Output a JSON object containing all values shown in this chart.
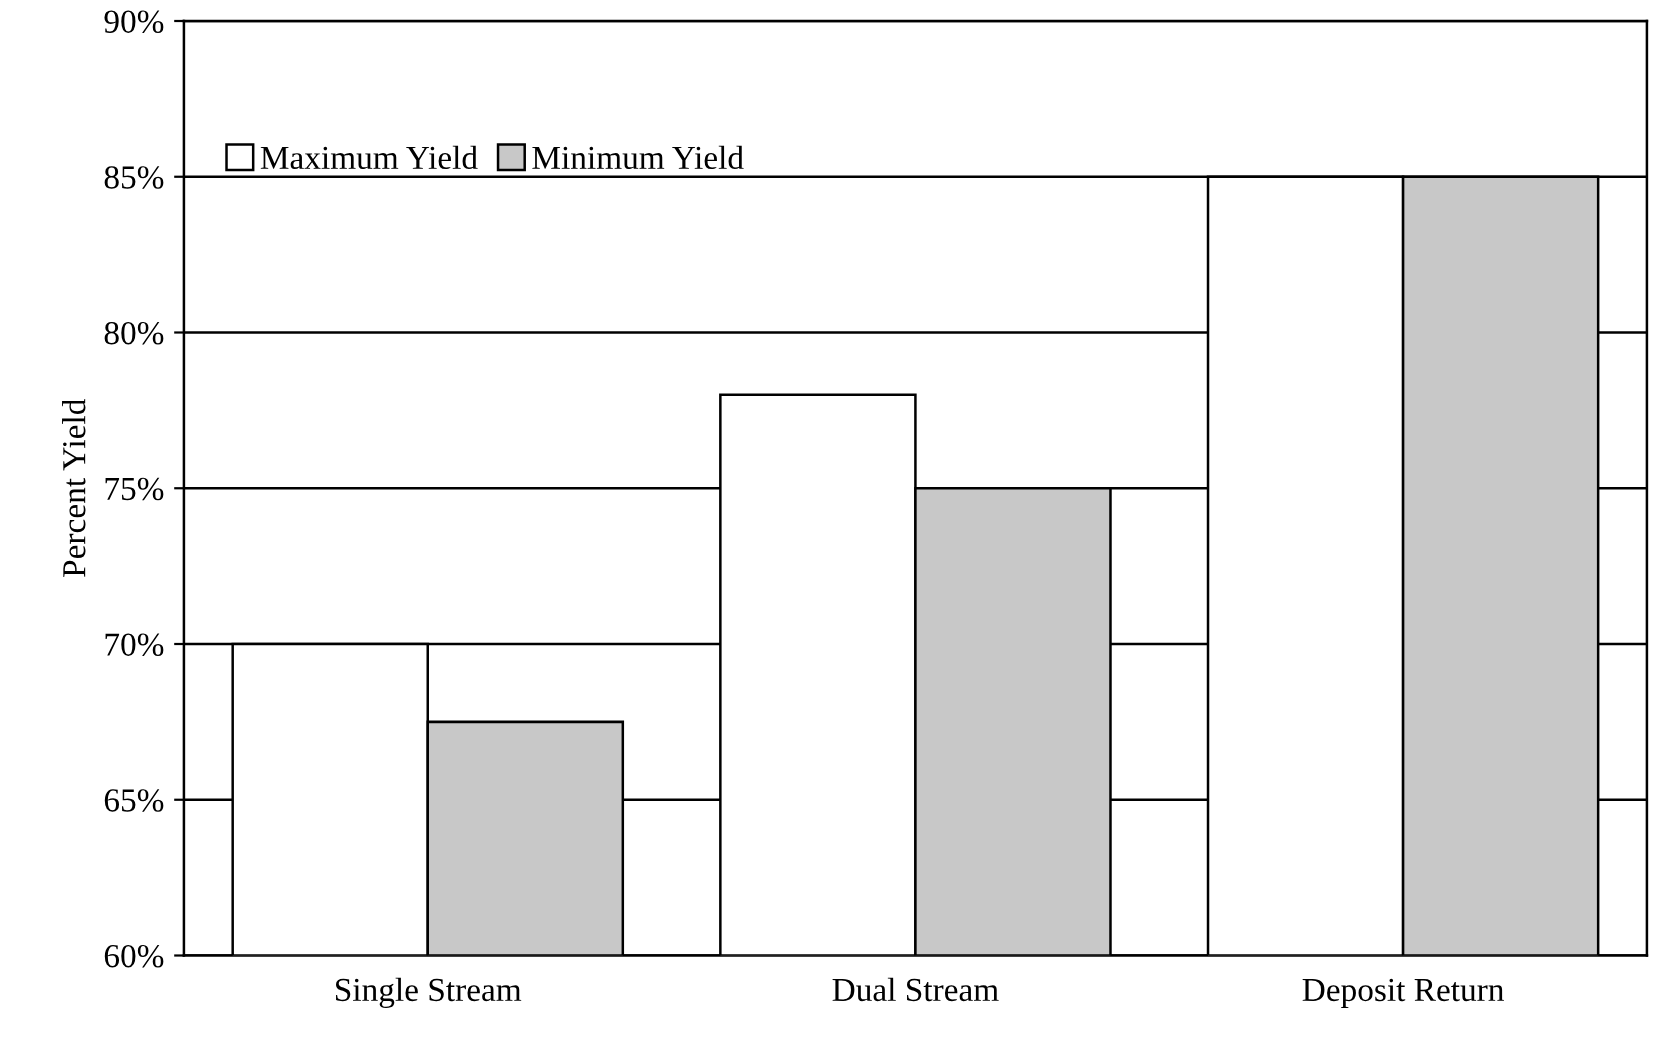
{
  "chart_data": {
    "type": "bar",
    "ylabel": "Percent Yield",
    "categories": [
      "Single Stream",
      "Dual Stream",
      "Deposit Return"
    ],
    "series": [
      {
        "name": "Maximum Yield",
        "color": "#ffffff",
        "values": [
          70,
          78,
          85
        ]
      },
      {
        "name": "Minimum Yield",
        "color": "#c8c8c8",
        "values": [
          67.5,
          75,
          85
        ]
      }
    ],
    "ylim": [
      60,
      90
    ],
    "yticks": [
      {
        "value": 60,
        "label": "60%"
      },
      {
        "value": 65,
        "label": "65%"
      },
      {
        "value": 70,
        "label": "70%"
      },
      {
        "value": 75,
        "label": "75%"
      },
      {
        "value": 80,
        "label": "80%"
      },
      {
        "value": 85,
        "label": "85%"
      },
      {
        "value": 90,
        "label": "90%"
      }
    ],
    "grid": "y",
    "legend": "top left"
  }
}
